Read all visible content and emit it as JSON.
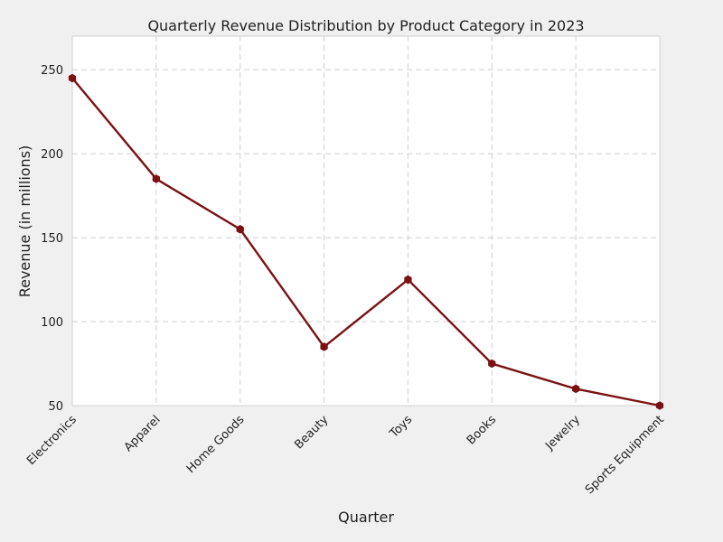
{
  "chart_data": {
    "type": "line",
    "title": "Quarterly Revenue Distribution by Product Category in 2023",
    "xlabel": "Quarter",
    "ylabel": "Revenue (in millions)",
    "categories": [
      "Electronics",
      "Apparel",
      "Home Goods",
      "Beauty",
      "Toys",
      "Books",
      "Jewelry",
      "Sports Equipment"
    ],
    "series": [
      {
        "values": [
          245,
          185,
          155,
          85,
          125,
          75,
          60,
          50
        ]
      }
    ],
    "ylim": [
      50,
      270
    ],
    "yticks": [
      50,
      100,
      150,
      200,
      250
    ],
    "grid": true,
    "line_color": "#7b1113"
  }
}
